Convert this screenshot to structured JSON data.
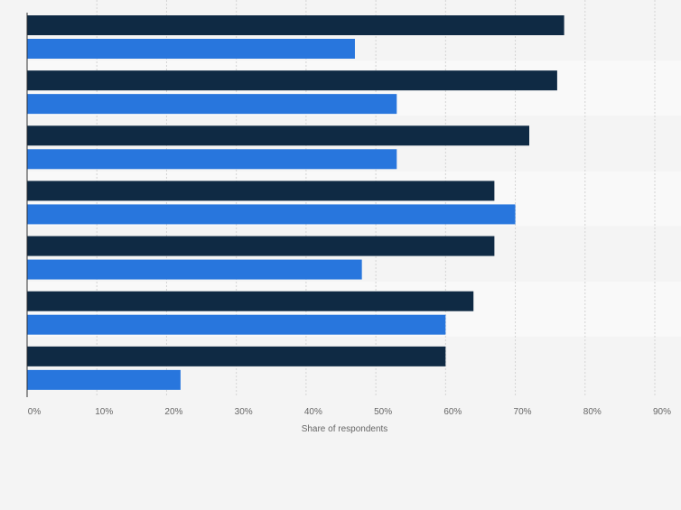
{
  "chart_data": {
    "type": "bar",
    "orientation": "horizontal",
    "categories": [
      "",
      "",
      "",
      "",
      "",
      "",
      ""
    ],
    "series": [
      {
        "values": [
          77,
          76,
          72,
          67,
          67,
          64,
          60
        ],
        "color": "#0f2a44"
      },
      {
        "values": [
          47,
          53,
          53,
          70,
          48,
          60,
          22
        ],
        "color": "#2876dd"
      }
    ],
    "xlabel": "Share of respondents",
    "ylabel": "",
    "xlim": [
      0,
      90
    ],
    "xticks": [
      "0%",
      "10%",
      "20%",
      "30%",
      "40%",
      "50%",
      "60%",
      "70%",
      "80%",
      "90%"
    ],
    "grid": true,
    "legend": "none"
  }
}
